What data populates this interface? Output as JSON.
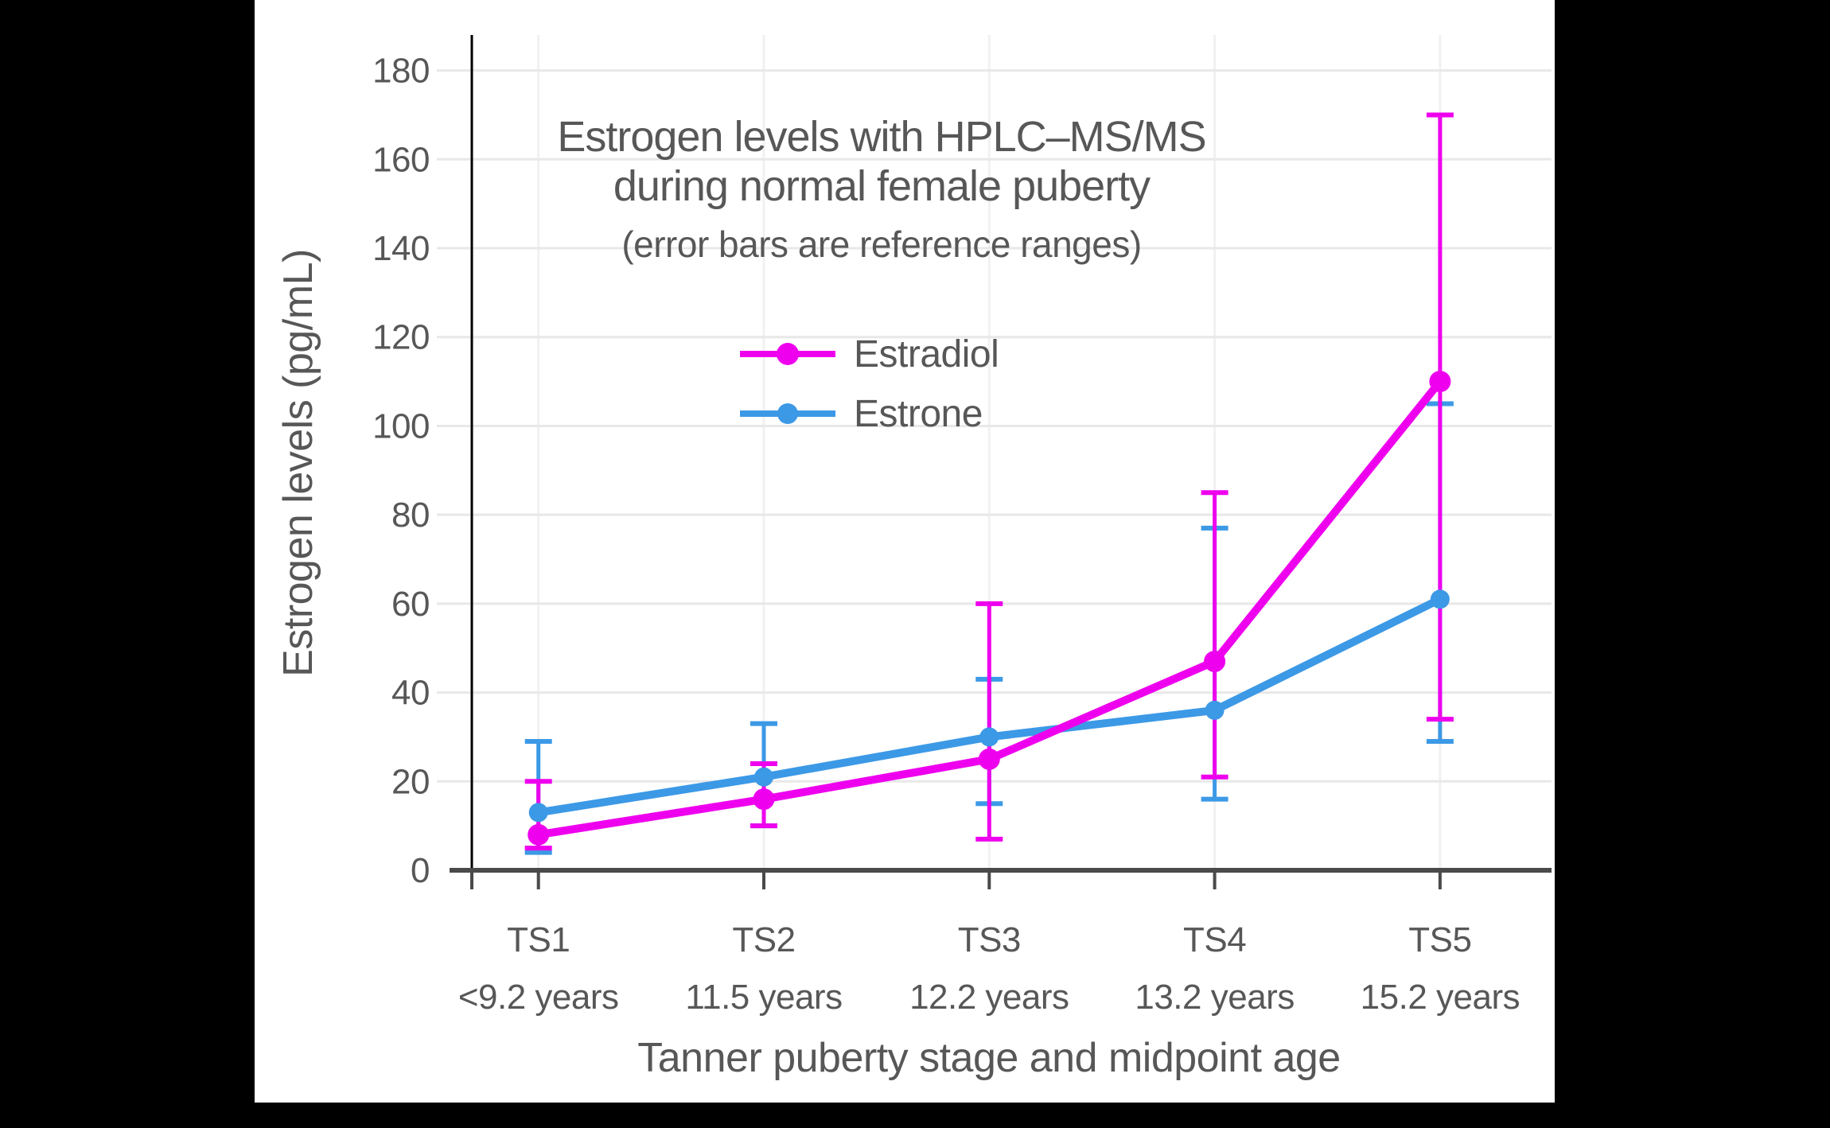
{
  "page": {
    "background": "#000000",
    "panel_background": "#ffffff",
    "text_color": "#575757",
    "axis_color": "#4a4a4a",
    "h_grid_color": "#e8e8e8",
    "v_grid_color": "#f1f1f1"
  },
  "chart_data": {
    "type": "line",
    "title_line1": "Estrogen levels with HPLC–MS/MS",
    "title_line2": "during normal female puberty",
    "subtitle": "(error bars are reference ranges)",
    "xlabel": "Tanner puberty stage and midpoint age",
    "ylabel": "Estrogen levels (pg/mL)",
    "categories": [
      "TS1",
      "TS2",
      "TS3",
      "TS4",
      "TS5"
    ],
    "category_ages": [
      "<9.2 years",
      "11.5 years",
      "12.2 years",
      "13.2 years",
      "15.2 years"
    ],
    "yticks": [
      0,
      20,
      40,
      60,
      80,
      100,
      120,
      140,
      160,
      180
    ],
    "ylim": [
      0,
      188
    ],
    "grid": "on",
    "legend_position": "inside upper-left of plot, below subtitle",
    "error_bars": "reference ranges",
    "series": [
      {
        "name": "Estradiol",
        "color": "#EE00EE",
        "values": [
          8,
          16,
          25,
          47,
          110
        ],
        "error_low": [
          5,
          10,
          7,
          21,
          34
        ],
        "error_high": [
          20,
          24,
          60,
          85,
          170
        ]
      },
      {
        "name": "Estrone",
        "color": "#3C99E6",
        "values": [
          13,
          21,
          30,
          36,
          61
        ],
        "error_low": [
          4,
          10,
          15,
          16,
          29
        ],
        "error_high": [
          29,
          33,
          43,
          77,
          105
        ]
      }
    ]
  }
}
